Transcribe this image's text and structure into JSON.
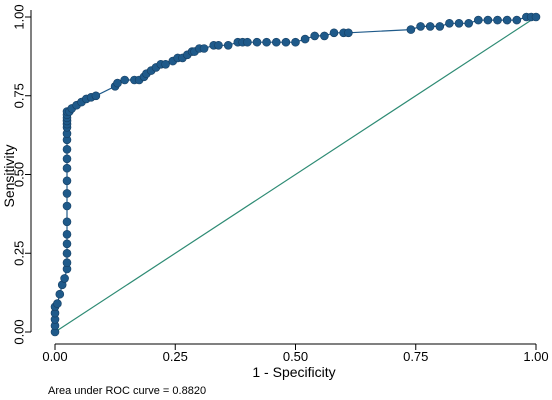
{
  "chart_data": {
    "type": "line",
    "xlabel": "1 - Specificity",
    "ylabel": "Sensitivity",
    "xlim": [
      0,
      1
    ],
    "ylim": [
      0,
      1
    ],
    "xticks": [
      "0.00",
      "0.25",
      "0.50",
      "0.75",
      "1.00"
    ],
    "yticks": [
      "0.00",
      "0.25",
      "0.50",
      "0.75",
      "1.00"
    ],
    "note": "Area under ROC curve = 0.8820",
    "grid": false,
    "colors": {
      "roc": "#1f5a8a",
      "reference": "#2e8b74",
      "axis": "#000000"
    },
    "series": [
      {
        "kind": "roc",
        "x": [
          0.0,
          0.0,
          0.0,
          0.0,
          0.0,
          0.005,
          0.01,
          0.015,
          0.02,
          0.025,
          0.025,
          0.025,
          0.025,
          0.025,
          0.025,
          0.025,
          0.025,
          0.025,
          0.025,
          0.025,
          0.025,
          0.025,
          0.025,
          0.025,
          0.025,
          0.025,
          0.025,
          0.025,
          0.025,
          0.03,
          0.035,
          0.045,
          0.055,
          0.065,
          0.075,
          0.085,
          0.125,
          0.13,
          0.145,
          0.165,
          0.175,
          0.185,
          0.19,
          0.2,
          0.21,
          0.22,
          0.23,
          0.245,
          0.255,
          0.265,
          0.275,
          0.285,
          0.29,
          0.3,
          0.31,
          0.33,
          0.34,
          0.36,
          0.38,
          0.39,
          0.4,
          0.42,
          0.44,
          0.46,
          0.48,
          0.5,
          0.52,
          0.54,
          0.56,
          0.58,
          0.6,
          0.61,
          0.74,
          0.76,
          0.78,
          0.8,
          0.82,
          0.84,
          0.86,
          0.88,
          0.9,
          0.92,
          0.94,
          0.96,
          0.98,
          0.99,
          1.0
        ],
        "y": [
          0.0,
          0.02,
          0.04,
          0.06,
          0.08,
          0.09,
          0.12,
          0.15,
          0.17,
          0.2,
          0.22,
          0.25,
          0.28,
          0.31,
          0.35,
          0.4,
          0.44,
          0.48,
          0.52,
          0.55,
          0.58,
          0.61,
          0.63,
          0.65,
          0.66,
          0.67,
          0.68,
          0.69,
          0.7,
          0.7,
          0.71,
          0.72,
          0.73,
          0.74,
          0.745,
          0.75,
          0.78,
          0.79,
          0.8,
          0.8,
          0.8,
          0.81,
          0.82,
          0.83,
          0.84,
          0.85,
          0.85,
          0.86,
          0.87,
          0.87,
          0.88,
          0.89,
          0.89,
          0.9,
          0.9,
          0.91,
          0.91,
          0.91,
          0.92,
          0.92,
          0.92,
          0.92,
          0.92,
          0.92,
          0.92,
          0.92,
          0.93,
          0.94,
          0.94,
          0.95,
          0.95,
          0.95,
          0.96,
          0.97,
          0.97,
          0.97,
          0.98,
          0.98,
          0.98,
          0.99,
          0.99,
          0.99,
          0.99,
          0.99,
          1.0,
          1.0,
          1.0
        ]
      },
      {
        "kind": "reference",
        "x": [
          0,
          1
        ],
        "y": [
          0,
          1
        ]
      }
    ]
  }
}
